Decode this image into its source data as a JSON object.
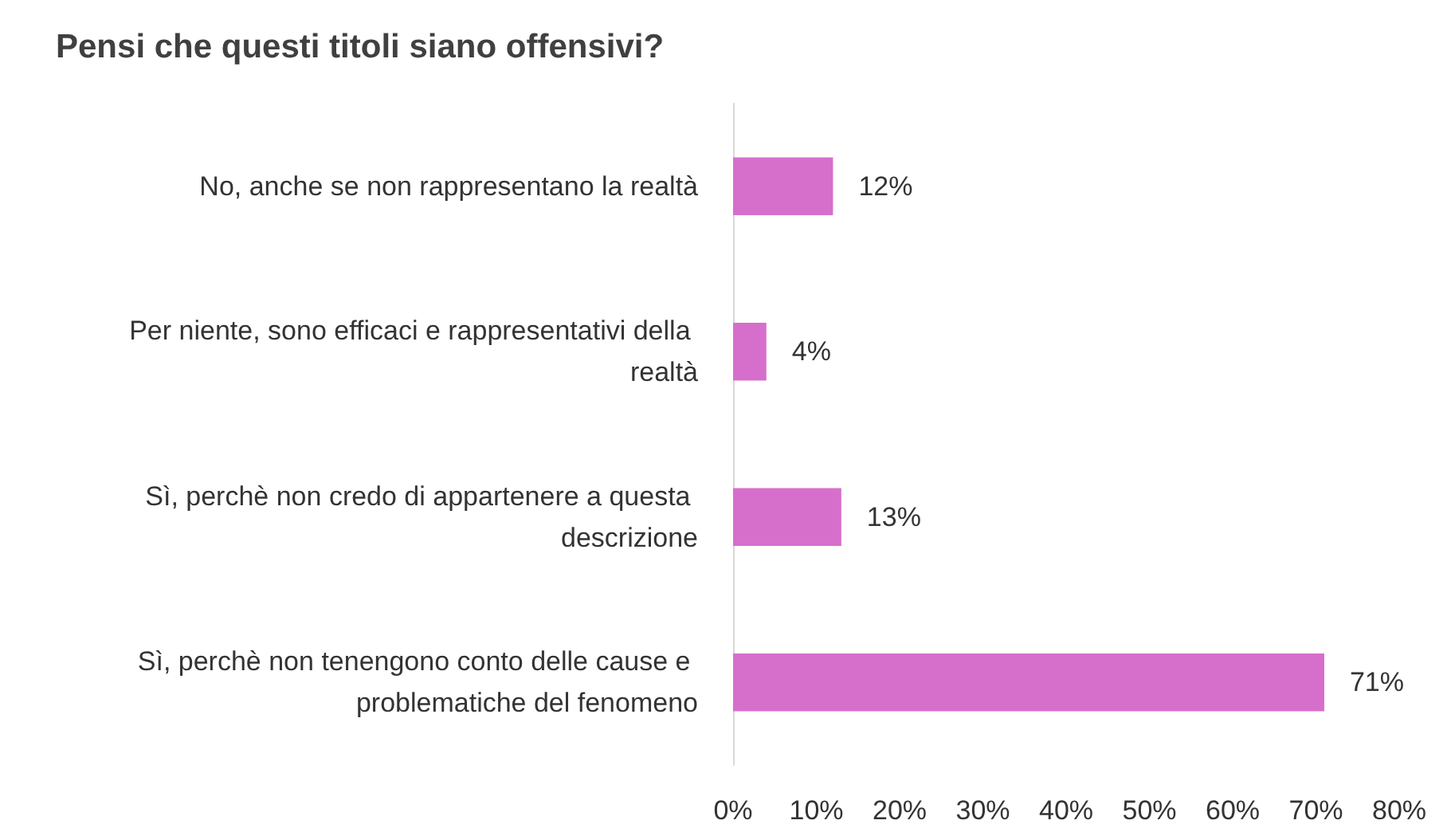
{
  "chart_data": {
    "type": "bar",
    "orientation": "horizontal",
    "title": "Pensi che questi titoli siano offensivi?",
    "categories": [
      "No, anche se non rappresentano la realtà",
      "Per niente, sono efficaci e rappresentativi della realtà",
      "Sì, perchè non credo di appartenere a questa descrizione",
      "Sì, perchè non tenengono conto delle cause e problematiche del fenomeno"
    ],
    "values": [
      12,
      4,
      13,
      71
    ],
    "value_labels": [
      "12%",
      "4%",
      "13%",
      "71%"
    ],
    "color": "#d66fcb",
    "xlim": [
      0,
      80
    ],
    "xticks": [
      {
        "value": 0,
        "label": "0%"
      },
      {
        "value": 10,
        "label": "10%"
      },
      {
        "value": 20,
        "label": "20%"
      },
      {
        "value": 30,
        "label": "30%"
      },
      {
        "value": 40,
        "label": "40%"
      },
      {
        "value": 50,
        "label": "50%"
      },
      {
        "value": 60,
        "label": "60%"
      },
      {
        "value": 70,
        "label": "70%"
      },
      {
        "value": 80,
        "label": "80%"
      }
    ],
    "grid": false
  }
}
